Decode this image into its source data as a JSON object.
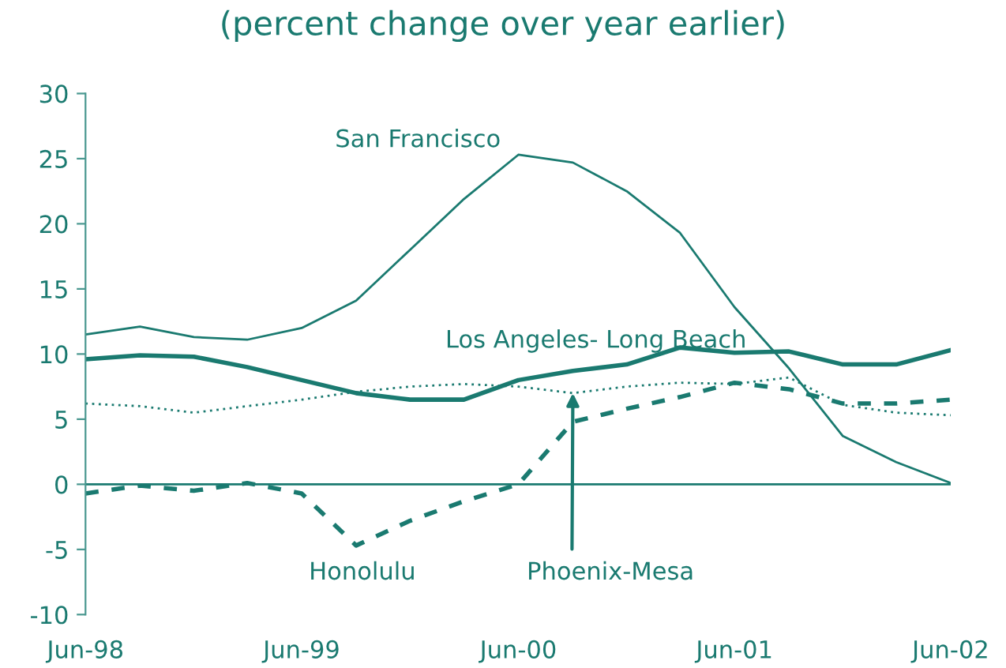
{
  "chart_data": {
    "type": "line",
    "title": "(percent change over year earlier)",
    "x": [
      "1998-06",
      "1998-09",
      "1998-12",
      "1999-03",
      "1999-06",
      "1999-09",
      "1999-12",
      "2000-03",
      "2000-06",
      "2000-09",
      "2000-12",
      "2001-03",
      "2001-06",
      "2001-09",
      "2001-12",
      "2002-03",
      "2002-06"
    ],
    "series": [
      {
        "name": "San Francisco",
        "color": "#1a7a70",
        "line_style": "solid",
        "values": [
          11.5,
          12.1,
          11.3,
          11.1,
          12.0,
          14.1,
          18.0,
          21.9,
          25.3,
          24.7,
          22.5,
          19.3,
          13.6,
          8.9,
          3.7,
          1.7,
          0.1
        ]
      },
      {
        "name": "Los Angeles- Long Beach",
        "color": "#1a7a70",
        "line_style": "solid",
        "values": [
          9.6,
          9.9,
          9.8,
          9.0,
          8.0,
          7.0,
          6.5,
          6.5,
          8.0,
          8.7,
          9.2,
          10.5,
          10.1,
          10.2,
          9.2,
          9.2,
          10.3
        ]
      },
      {
        "name": "Phoenix-Mesa",
        "color": "#1a7a70",
        "line_style": "dotted",
        "values": [
          6.2,
          6.0,
          5.5,
          6.0,
          6.5,
          7.1,
          7.5,
          7.7,
          7.5,
          7.0,
          7.5,
          7.8,
          7.7,
          8.2,
          6.1,
          5.5,
          5.3
        ]
      },
      {
        "name": "Honolulu",
        "color": "#1a7a70",
        "line_style": "dashed",
        "values": [
          -0.7,
          -0.1,
          -0.5,
          0.1,
          -0.7,
          -4.7,
          -2.8,
          -1.3,
          0.0,
          4.8,
          5.8,
          6.7,
          7.8,
          7.3,
          6.2,
          6.2,
          6.5
        ]
      }
    ],
    "xlim": [
      "1998-06",
      "2002-06"
    ],
    "xticks": [
      {
        "value": "1998-06",
        "label": "Jun-98"
      },
      {
        "value": "1999-06",
        "label": "Jun-99"
      },
      {
        "value": "2000-06",
        "label": "Jun-00"
      },
      {
        "value": "2001-06",
        "label": "Jun-01"
      },
      {
        "value": "2002-06",
        "label": "Jun-02"
      }
    ],
    "ylim": [
      -10,
      30
    ],
    "yticks": [
      -10,
      -5,
      0,
      5,
      10,
      15,
      20,
      25,
      30
    ],
    "ref_lines": [
      {
        "axis": "y",
        "value": 0,
        "color": "#1a7a70"
      }
    ],
    "grid": false,
    "legend": false,
    "marker": "none"
  }
}
